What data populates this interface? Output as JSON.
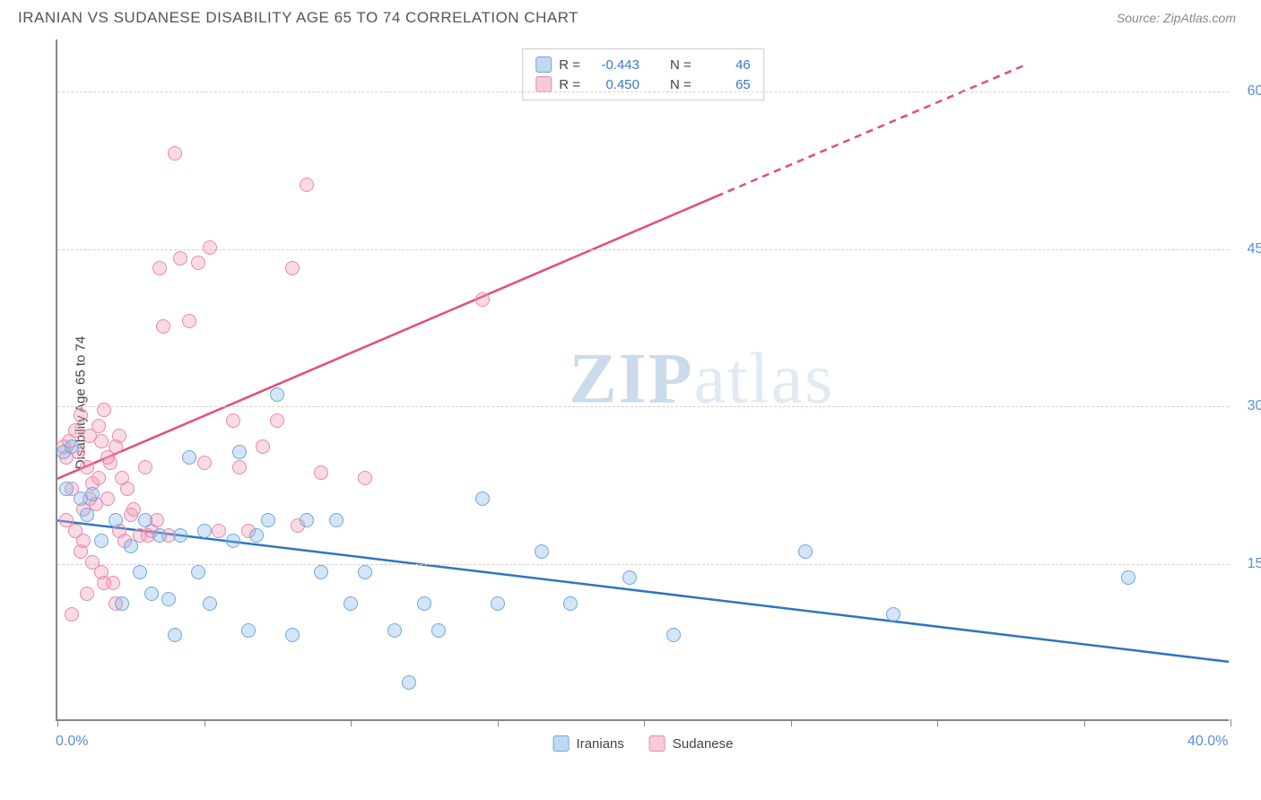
{
  "header": {
    "title": "IRANIAN VS SUDANESE DISABILITY AGE 65 TO 74 CORRELATION CHART",
    "source": "Source: ZipAtlas.com"
  },
  "chart": {
    "type": "scatter",
    "ylabel": "Disability Age 65 to 74",
    "xlim": [
      0,
      40
    ],
    "ylim": [
      0,
      65
    ],
    "xtick_positions": [
      0,
      5,
      10,
      15,
      20,
      25,
      30,
      35,
      40
    ],
    "xtick_labels_shown": {
      "0": "0.0%",
      "40": "40.0%"
    },
    "ytick_positions": [
      15,
      30,
      45,
      60
    ],
    "ytick_labels": {
      "15": "15.0%",
      "30": "30.0%",
      "45": "45.0%",
      "60": "60.0%"
    },
    "grid_color": "#d0d0d0",
    "background_color": "#ffffff",
    "marker_radius": 8,
    "series": {
      "iranians": {
        "label": "Iranians",
        "color_fill": "rgba(130,180,230,0.35)",
        "color_stroke": "#6fa8dc",
        "trend_color": "#2e75c0",
        "trend_width": 2.5,
        "R": "-0.443",
        "N": "46",
        "trend": {
          "x1": 0,
          "y1": 19,
          "x2": 40,
          "y2": 5.5
        },
        "points": [
          [
            0.2,
            25.5
          ],
          [
            0.3,
            22
          ],
          [
            0.5,
            26
          ],
          [
            0.8,
            21
          ],
          [
            1.0,
            19.5
          ],
          [
            1.2,
            21.5
          ],
          [
            1.5,
            17
          ],
          [
            2.0,
            19
          ],
          [
            2.2,
            11
          ],
          [
            2.5,
            16.5
          ],
          [
            2.8,
            14
          ],
          [
            3.0,
            19
          ],
          [
            3.2,
            12
          ],
          [
            3.5,
            17.5
          ],
          [
            3.8,
            11.5
          ],
          [
            4.0,
            8
          ],
          [
            4.2,
            17.5
          ],
          [
            4.5,
            25
          ],
          [
            4.8,
            14
          ],
          [
            5.0,
            18
          ],
          [
            5.2,
            11
          ],
          [
            6.0,
            17
          ],
          [
            6.2,
            25.5
          ],
          [
            6.5,
            8.5
          ],
          [
            6.8,
            17.5
          ],
          [
            7.2,
            19
          ],
          [
            7.5,
            31
          ],
          [
            8.0,
            8
          ],
          [
            8.5,
            19
          ],
          [
            9.0,
            14
          ],
          [
            9.5,
            19
          ],
          [
            10.0,
            11
          ],
          [
            10.5,
            14
          ],
          [
            11.5,
            8.5
          ],
          [
            12.0,
            3.5
          ],
          [
            12.5,
            11
          ],
          [
            13.0,
            8.5
          ],
          [
            14.5,
            21
          ],
          [
            15.0,
            11
          ],
          [
            16.5,
            16
          ],
          [
            17.5,
            11
          ],
          [
            19.5,
            13.5
          ],
          [
            21.0,
            8
          ],
          [
            25.5,
            16
          ],
          [
            28.5,
            10
          ],
          [
            36.5,
            13.5
          ]
        ]
      },
      "sudanese": {
        "label": "Sudanese",
        "color_fill": "rgba(240,150,180,0.35)",
        "color_stroke": "#e68aab",
        "trend_color": "#e54b7a",
        "trend_width": 2.5,
        "R": "0.450",
        "N": "65",
        "trend_solid": {
          "x1": 0,
          "y1": 23,
          "x2": 22.5,
          "y2": 50
        },
        "trend_dash": {
          "x1": 22.5,
          "y1": 50,
          "x2": 33,
          "y2": 62.5
        },
        "points": [
          [
            0.2,
            26
          ],
          [
            0.3,
            25
          ],
          [
            0.4,
            26.5
          ],
          [
            0.5,
            22
          ],
          [
            0.6,
            27.5
          ],
          [
            0.7,
            25.5
          ],
          [
            0.8,
            29
          ],
          [
            0.9,
            20
          ],
          [
            1.0,
            24
          ],
          [
            1.1,
            27
          ],
          [
            1.2,
            22.5
          ],
          [
            1.3,
            20.5
          ],
          [
            1.4,
            28
          ],
          [
            1.5,
            26.5
          ],
          [
            1.6,
            29.5
          ],
          [
            1.7,
            21
          ],
          [
            1.8,
            24.5
          ],
          [
            1.9,
            13
          ],
          [
            2.0,
            26
          ],
          [
            2.1,
            18
          ],
          [
            2.2,
            23
          ],
          [
            2.3,
            17
          ],
          [
            2.4,
            22
          ],
          [
            2.5,
            19.5
          ],
          [
            2.6,
            20
          ],
          [
            2.8,
            17.5
          ],
          [
            3.0,
            24
          ],
          [
            3.1,
            17.5
          ],
          [
            3.2,
            18
          ],
          [
            3.4,
            19
          ],
          [
            3.5,
            43
          ],
          [
            3.6,
            37.5
          ],
          [
            3.8,
            17.5
          ],
          [
            4.0,
            54
          ],
          [
            4.2,
            44
          ],
          [
            4.5,
            38
          ],
          [
            4.8,
            43.5
          ],
          [
            5.0,
            24.5
          ],
          [
            5.2,
            45
          ],
          [
            5.5,
            18
          ],
          [
            6.0,
            28.5
          ],
          [
            6.2,
            24
          ],
          [
            6.5,
            18
          ],
          [
            7.0,
            26
          ],
          [
            7.5,
            28.5
          ],
          [
            8.0,
            43
          ],
          [
            8.2,
            18.5
          ],
          [
            8.5,
            51
          ],
          [
            9.0,
            23.5
          ],
          [
            10.5,
            23
          ],
          [
            14.5,
            40
          ],
          [
            0.5,
            10
          ],
          [
            1.0,
            12
          ],
          [
            1.5,
            14
          ],
          [
            0.8,
            16
          ],
          [
            1.2,
            15
          ],
          [
            1.6,
            13
          ],
          [
            2.0,
            11
          ],
          [
            0.3,
            19
          ],
          [
            0.6,
            18
          ],
          [
            0.9,
            17
          ],
          [
            1.1,
            21
          ],
          [
            1.4,
            23
          ],
          [
            1.7,
            25
          ],
          [
            2.1,
            27
          ]
        ]
      }
    },
    "legend_top_labels": {
      "R_label": "R =",
      "N_label": "N ="
    },
    "watermark": {
      "zip": "ZIP",
      "atlas": "atlas"
    }
  }
}
